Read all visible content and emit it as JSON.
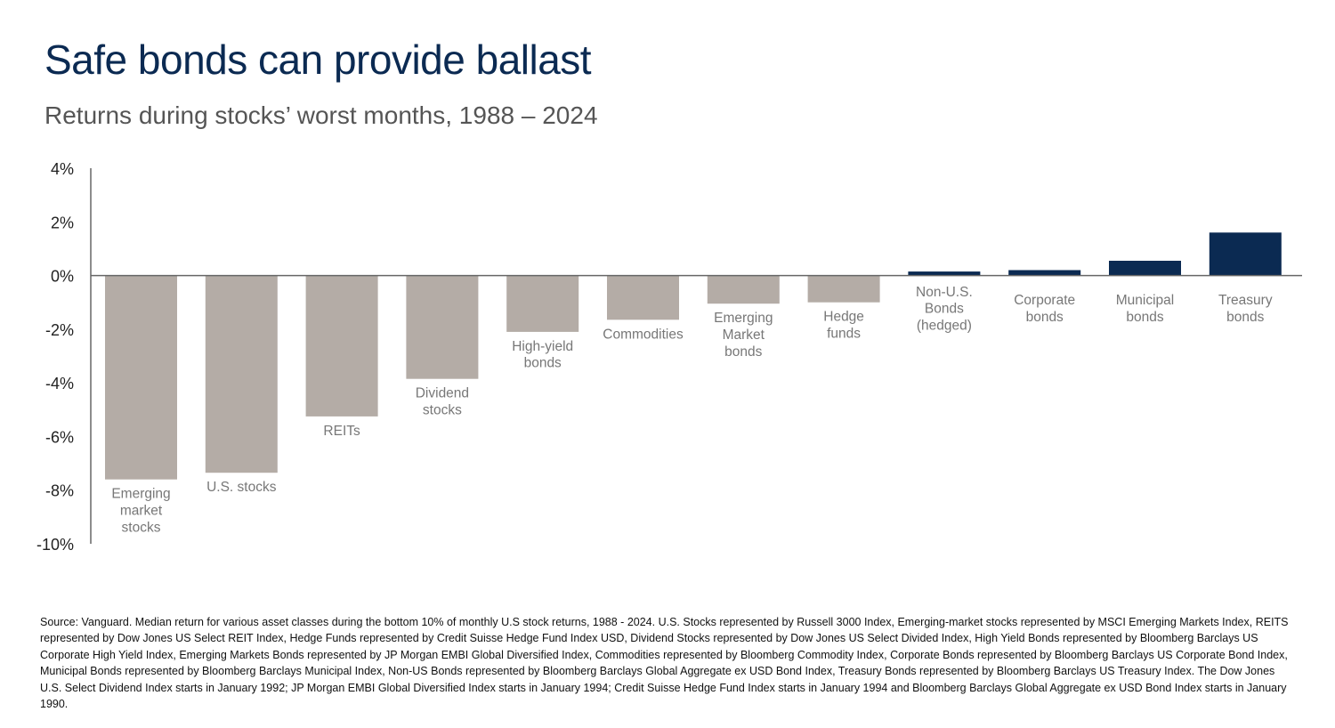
{
  "title": "Safe bonds can provide ballast",
  "subtitle": "Returns during stocks’ worst months, 1988 – 2024",
  "colors": {
    "negative_bar": "#b4aca6",
    "positive_bar": "#0b2a52",
    "title": "#0b2a52",
    "axis": "#666666",
    "category_label": "#777777"
  },
  "chart_data": {
    "type": "bar",
    "categories": [
      [
        "Emerging",
        "market",
        "stocks"
      ],
      [
        "U.S. stocks"
      ],
      [
        "REITs"
      ],
      [
        "Dividend",
        "stocks"
      ],
      [
        "High-yield",
        "bonds"
      ],
      [
        "Commodities"
      ],
      [
        "Emerging",
        "Market",
        "bonds"
      ],
      [
        "Hedge",
        "funds"
      ],
      [
        "Non-U.S.",
        "Bonds",
        "(hedged)"
      ],
      [
        "Corporate",
        "bonds"
      ],
      [
        "Municipal",
        "bonds"
      ],
      [
        "Treasury",
        "bonds"
      ]
    ],
    "values": [
      -7.6,
      -7.35,
      -5.25,
      -3.85,
      -2.1,
      -1.65,
      -1.05,
      -1.0,
      0.15,
      0.2,
      0.55,
      1.6
    ],
    "ylim": [
      -10,
      4
    ],
    "yticks": [
      4,
      2,
      0,
      -2,
      -4,
      -6,
      -8,
      -10
    ],
    "ytick_labels": [
      "4%",
      "2%",
      "0%",
      "-2%",
      "-4%",
      "-6%",
      "-8%",
      "-10%"
    ],
    "xlabel": "",
    "ylabel": "",
    "grid": false,
    "legend": "none"
  },
  "source": "Source: Vanguard. Median return for various asset classes during the bottom 10% of monthly U.S stock returns, 1988 - 2024. U.S. Stocks represented by Russell 3000 Index, Emerging-market stocks represented by MSCI Emerging Markets Index, REITS represented by Dow Jones US Select REIT Index, Hedge Funds represented by Credit Suisse Hedge Fund Index USD, Dividend Stocks represented by Dow Jones US Select Divided Index, High Yield Bonds represented by Bloomberg Barclays US Corporate High Yield Index, Emerging Markets Bonds represented by JP Morgan EMBI Global Diversified Index, Commodities represented by Bloomberg Commodity Index, Corporate Bonds represented by Bloomberg Barclays US Corporate Bond Index, Municipal Bonds represented by Bloomberg Barclays Municipal Index, Non-US Bonds represented by Bloomberg Barclays Global Aggregate ex USD Bond Index, Treasury Bonds represented by Bloomberg Barclays US Treasury Index. The Dow Jones U.S. Select Dividend Index starts in January 1992; JP Morgan EMBI Global Diversified Index starts in January 1994; Credit Suisse Hedge Fund Index starts in January 1994 and Bloomberg Barclays Global Aggregate ex USD Bond Index starts in January 1990."
}
